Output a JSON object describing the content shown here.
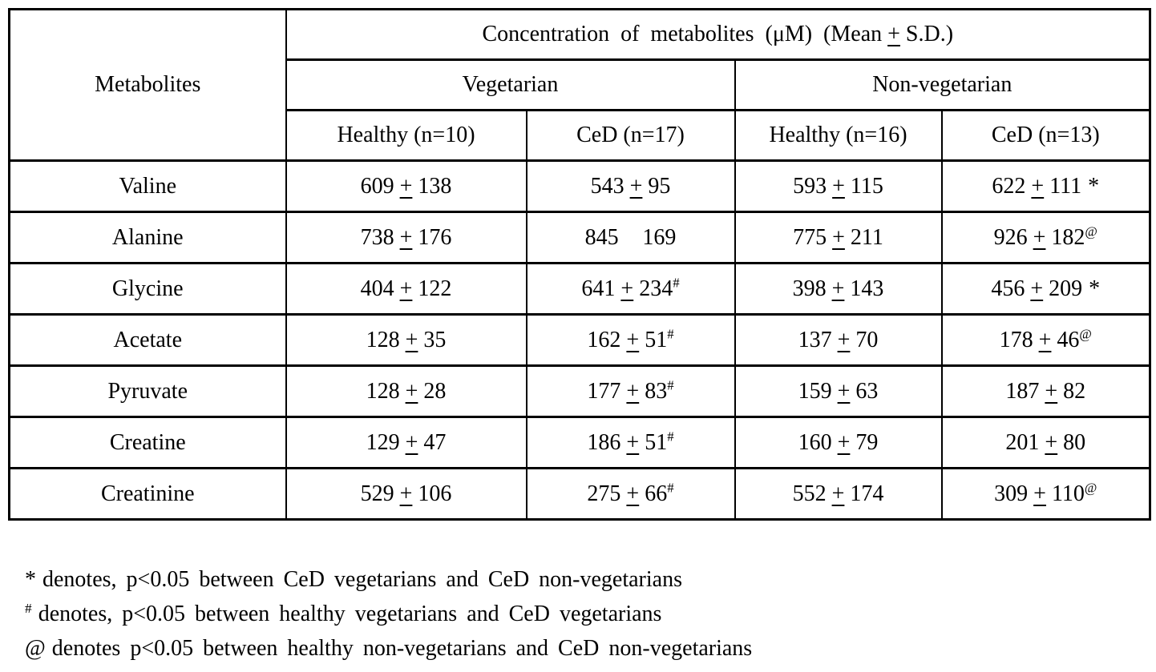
{
  "table": {
    "col1_header": "Metabolites",
    "header_top_pre": "Concentration of metabolites (μM) (Mean",
    "header_top_pm": "+",
    "header_top_post": "S.D.)",
    "group_headers": [
      "Vegetarian",
      "Non-vegetarian"
    ],
    "sub_headers": [
      "Healthy (n=10)",
      "CeD (n=17)",
      "Healthy (n=16)",
      "CeD (n=13)"
    ],
    "plus_minus": "+",
    "rows": [
      {
        "metabolite": "Valine",
        "cells": [
          {
            "mean": "609",
            "pm": true,
            "sd": "138",
            "sup": "",
            "star": ""
          },
          {
            "mean": "543",
            "pm": true,
            "sd": "95",
            "sup": "",
            "star": ""
          },
          {
            "mean": "593",
            "pm": true,
            "sd": "115",
            "sup": "",
            "star": ""
          },
          {
            "mean": "622",
            "pm": true,
            "sd": "111",
            "sup": "",
            "star": "*"
          }
        ]
      },
      {
        "metabolite": "Alanine",
        "cells": [
          {
            "mean": "738",
            "pm": true,
            "sd": "176",
            "sup": "",
            "star": ""
          },
          {
            "mean": "845",
            "pm": false,
            "sd": "169",
            "sup": "",
            "star": ""
          },
          {
            "mean": "775",
            "pm": true,
            "sd": "211",
            "sup": "",
            "star": ""
          },
          {
            "mean": "926",
            "pm": true,
            "sd": "182",
            "sup": "@",
            "star": ""
          }
        ]
      },
      {
        "metabolite": "Glycine",
        "cells": [
          {
            "mean": "404",
            "pm": true,
            "sd": "122",
            "sup": "",
            "star": ""
          },
          {
            "mean": "641",
            "pm": true,
            "sd": "234",
            "sup": "#",
            "star": ""
          },
          {
            "mean": "398",
            "pm": true,
            "sd": "143",
            "sup": "",
            "star": ""
          },
          {
            "mean": "456",
            "pm": true,
            "sd": "209",
            "sup": "",
            "star": "*"
          }
        ]
      },
      {
        "metabolite": "Acetate",
        "cells": [
          {
            "mean": "128",
            "pm": true,
            "sd": "35",
            "sup": "",
            "star": ""
          },
          {
            "mean": "162",
            "pm": true,
            "sd": "51",
            "sup": "#",
            "star": ""
          },
          {
            "mean": "137",
            "pm": true,
            "sd": "70",
            "sup": "",
            "star": ""
          },
          {
            "mean": "178",
            "pm": true,
            "sd": "46",
            "sup": "@",
            "star": ""
          }
        ]
      },
      {
        "metabolite": "Pyruvate",
        "cells": [
          {
            "mean": "128",
            "pm": true,
            "sd": "28",
            "sup": "",
            "star": ""
          },
          {
            "mean": "177",
            "pm": true,
            "sd": "83",
            "sup": "#",
            "star": ""
          },
          {
            "mean": "159",
            "pm": true,
            "sd": "63",
            "sup": "",
            "star": ""
          },
          {
            "mean": "187",
            "pm": true,
            "sd": "82",
            "sup": "",
            "star": ""
          }
        ]
      },
      {
        "metabolite": "Creatine",
        "cells": [
          {
            "mean": "129",
            "pm": true,
            "sd": "47",
            "sup": "",
            "star": ""
          },
          {
            "mean": "186",
            "pm": true,
            "sd": "51",
            "sup": "#",
            "star": ""
          },
          {
            "mean": "160",
            "pm": true,
            "sd": "79",
            "sup": "",
            "star": ""
          },
          {
            "mean": "201",
            "pm": true,
            "sd": "80",
            "sup": "",
            "star": ""
          }
        ]
      },
      {
        "metabolite": "Creatinine",
        "cells": [
          {
            "mean": "529",
            "pm": true,
            "sd": "106",
            "sup": "",
            "star": ""
          },
          {
            "mean": "275",
            "pm": true,
            "sd": "66",
            "sup": "#",
            "star": ""
          },
          {
            "mean": "552",
            "pm": true,
            "sd": "174",
            "sup": "",
            "star": ""
          },
          {
            "mean": "309",
            "pm": true,
            "sd": "110",
            "sup": "@",
            "star": ""
          }
        ]
      }
    ]
  },
  "footnotes": [
    {
      "symbol": "*",
      "superscript": false,
      "text": "denotes, p<0.05 between CeD vegetarians and CeD non-vegetarians"
    },
    {
      "symbol": "#",
      "superscript": true,
      "text": "denotes, p<0.05 between healthy vegetarians and CeD vegetarians"
    },
    {
      "symbol": "@",
      "superscript": false,
      "text": "denotes p<0.05 between healthy non-vegetarians and CeD non-vegetarians"
    }
  ]
}
